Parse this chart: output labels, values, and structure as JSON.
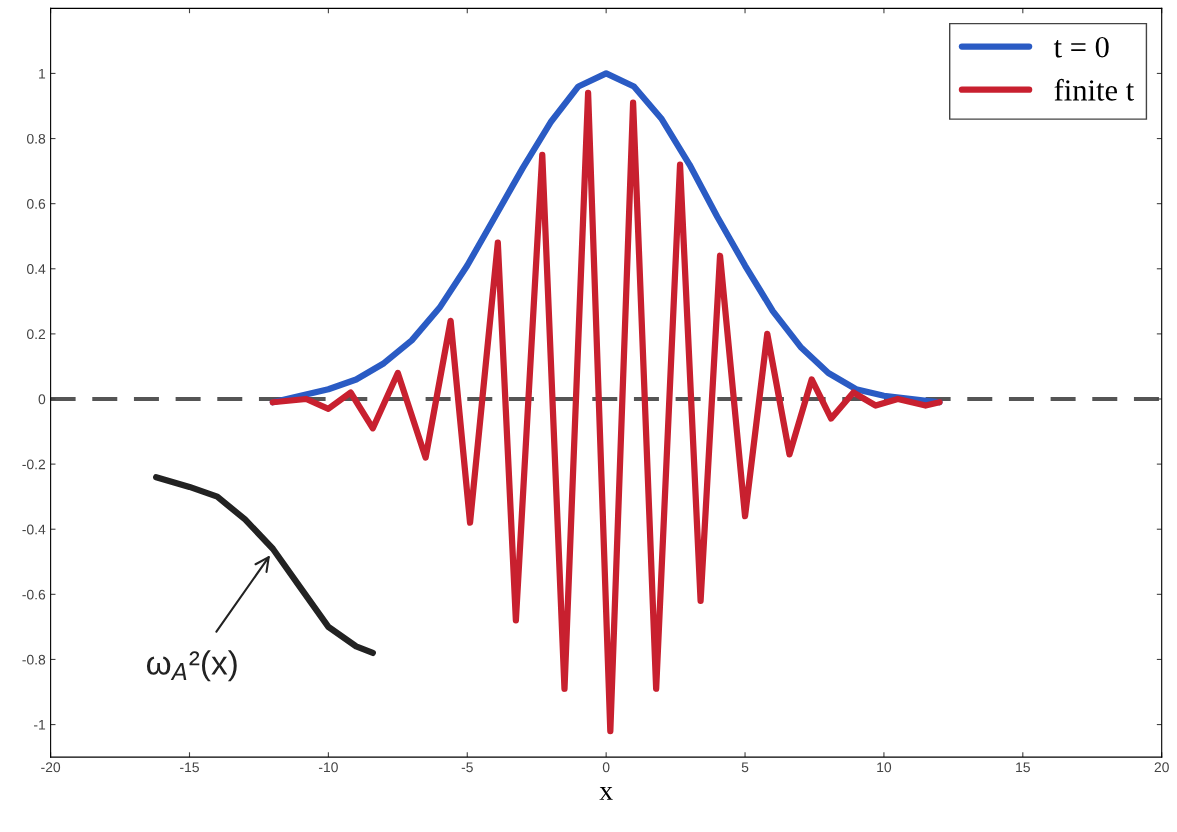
{
  "chart_data": {
    "type": "line",
    "xlabel": "x",
    "series": [
      {
        "name": "t = 0",
        "color": "#2a5bc4",
        "x": [
          -12,
          -11,
          -10,
          -9,
          -8,
          -7,
          -6,
          -5,
          -4,
          -3,
          -2,
          -1,
          0,
          1,
          2,
          3,
          4,
          5,
          6,
          7,
          8,
          9,
          10,
          11,
          12
        ],
        "values": [
          -0.01,
          0.01,
          0.03,
          0.06,
          0.11,
          0.18,
          0.28,
          0.41,
          0.56,
          0.71,
          0.85,
          0.96,
          1.0,
          0.96,
          0.86,
          0.72,
          0.56,
          0.41,
          0.27,
          0.16,
          0.08,
          0.03,
          0.01,
          0.0,
          -0.01
        ]
      },
      {
        "name": "finite t",
        "color": "#c8202f",
        "x": [
          -12,
          -10.8,
          -10,
          -9.2,
          -8.4,
          -7.5,
          -6.5,
          -5.6,
          -4.9,
          -3.9,
          -3.25,
          -2.3,
          -1.5,
          -0.65,
          0.15,
          0.97,
          1.8,
          2.66,
          3.4,
          4.1,
          5.0,
          5.8,
          6.6,
          7.4,
          8.1,
          8.9,
          9.7,
          10.5,
          11.5,
          12
        ],
        "values": [
          -0.01,
          0.0,
          -0.03,
          0.02,
          -0.09,
          0.08,
          -0.18,
          0.24,
          -0.38,
          0.48,
          -0.68,
          0.75,
          -0.89,
          0.94,
          -1.02,
          0.91,
          -0.89,
          0.72,
          -0.62,
          0.44,
          -0.36,
          0.2,
          -0.17,
          0.06,
          -0.06,
          0.02,
          -0.02,
          0.0,
          -0.02,
          -0.01
        ]
      },
      {
        "color": "#222222",
        "x": [
          -16.2,
          -15,
          -14,
          -13,
          -12,
          -11,
          -10,
          -9,
          -8.4
        ],
        "values": [
          -0.24,
          -0.27,
          -0.3,
          -0.37,
          -0.46,
          -0.58,
          -0.7,
          -0.76,
          -0.78
        ]
      }
    ],
    "annotations": [
      {
        "text": "ω$_{A}$²(x)",
        "x": -12.1,
        "y": -0.48
      }
    ],
    "ref_lines": [
      {
        "axis": "y",
        "value": 0,
        "color": "#555555",
        "line_style": "dashed"
      }
    ],
    "xlim": [
      -20,
      20
    ],
    "xticks": [
      -20,
      -15,
      -10,
      -5,
      0,
      5,
      10,
      15,
      20
    ],
    "ylim": [
      -1.1,
      1.2
    ],
    "yticks": [
      -1,
      -0.8,
      -0.6,
      -0.4,
      -0.2,
      0,
      0.2,
      0.4,
      0.6,
      0.8,
      1
    ],
    "grid": false,
    "legend": "top right"
  }
}
